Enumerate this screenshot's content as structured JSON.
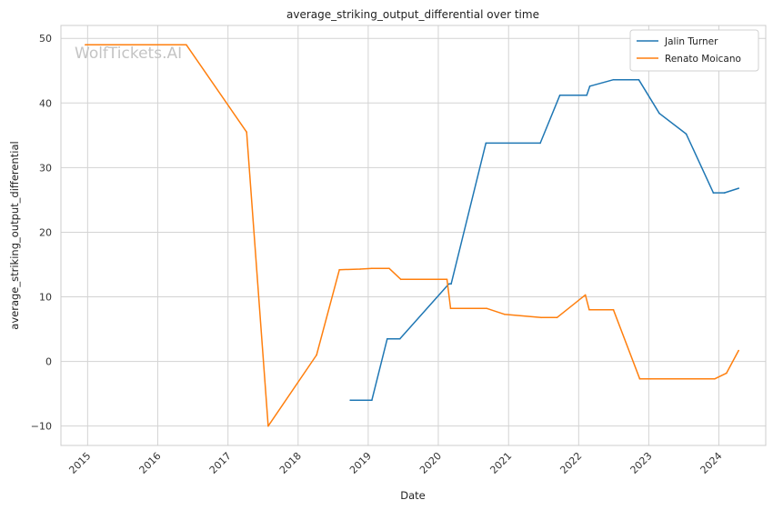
{
  "chart_data": {
    "type": "line",
    "title": "average_striking_output_differential over time",
    "xlabel": "Date",
    "ylabel": "average_striking_output_differential",
    "xlim": [
      "2014-08-15",
      "2024-09-01"
    ],
    "ylim": [
      -13,
      52
    ],
    "x_ticks": [
      "2015",
      "2016",
      "2017",
      "2018",
      "2019",
      "2020",
      "2021",
      "2022",
      "2023",
      "2024"
    ],
    "y_ticks": [
      -10,
      0,
      10,
      20,
      30,
      40,
      50
    ],
    "grid": true,
    "legend_position": "top-right",
    "watermark": "WolfTickets.AI",
    "series": [
      {
        "name": "Jalin Turner",
        "color": "#1f77b4",
        "points": [
          [
            "2018-09-30",
            -6.0
          ],
          [
            "2019-01-20",
            -6.0
          ],
          [
            "2019-04-10",
            3.5
          ],
          [
            "2019-06-15",
            3.5
          ],
          [
            "2020-02-25",
            12.0
          ],
          [
            "2020-03-08",
            12.0
          ],
          [
            "2020-09-05",
            33.8
          ],
          [
            "2021-06-15",
            33.8
          ],
          [
            "2021-09-25",
            41.2
          ],
          [
            "2022-02-12",
            41.2
          ],
          [
            "2022-02-28",
            42.6
          ],
          [
            "2022-07-01",
            43.6
          ],
          [
            "2022-11-10",
            43.6
          ],
          [
            "2023-02-25",
            38.4
          ],
          [
            "2023-07-15",
            35.2
          ],
          [
            "2023-12-03",
            26.1
          ],
          [
            "2024-01-30",
            26.1
          ],
          [
            "2024-04-13",
            26.8
          ]
        ]
      },
      {
        "name": "Renato Moicano",
        "color": "#ff7f0e",
        "points": [
          [
            "2014-12-20",
            49.0
          ],
          [
            "2016-05-29",
            49.0
          ],
          [
            "2017-04-08",
            35.5
          ],
          [
            "2017-07-29",
            -10.0
          ],
          [
            "2018-04-07",
            1.0
          ],
          [
            "2018-08-04",
            14.2
          ],
          [
            "2018-11-20",
            14.3
          ],
          [
            "2019-01-20",
            14.4
          ],
          [
            "2019-04-20",
            14.4
          ],
          [
            "2019-06-20",
            12.7
          ],
          [
            "2019-12-20",
            12.7
          ],
          [
            "2020-02-15",
            12.7
          ],
          [
            "2020-03-05",
            8.2
          ],
          [
            "2020-09-10",
            8.2
          ],
          [
            "2020-12-10",
            7.3
          ],
          [
            "2021-06-20",
            6.8
          ],
          [
            "2021-09-10",
            6.8
          ],
          [
            "2022-02-05",
            10.3
          ],
          [
            "2022-02-25",
            8.0
          ],
          [
            "2022-07-01",
            8.0
          ],
          [
            "2022-11-15",
            -2.7
          ],
          [
            "2023-01-10",
            -2.7
          ],
          [
            "2023-12-10",
            -2.7
          ],
          [
            "2024-02-10",
            -1.8
          ],
          [
            "2024-04-13",
            1.7
          ]
        ]
      }
    ]
  }
}
